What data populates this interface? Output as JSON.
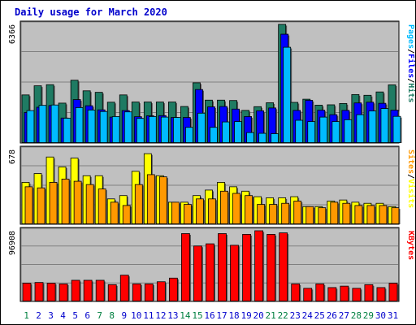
{
  "chart_data": {
    "type": "bar",
    "title": "Daily usage for March 2020",
    "categories": [
      "1",
      "2",
      "3",
      "4",
      "5",
      "6",
      "7",
      "8",
      "9",
      "10",
      "11",
      "12",
      "13",
      "14",
      "15",
      "16",
      "17",
      "18",
      "19",
      "20",
      "21",
      "22",
      "23",
      "24",
      "25",
      "26",
      "27",
      "28",
      "29",
      "30",
      "31"
    ],
    "weekend_days": [
      "1",
      "7",
      "8",
      "14",
      "15",
      "21",
      "22",
      "28",
      "29"
    ],
    "colors": {
      "hits": "#1f7b63",
      "files": "#0000ff",
      "pages": "#00bbff",
      "visits": "#ffff00",
      "sites": "#ff9900",
      "kbytes": "#ff0000",
      "panel_bg": "#c0c0c0",
      "title": "#0000cc",
      "weekend_label": "#008040",
      "weekday_label": "#0000cc"
    },
    "panels": [
      {
        "name": "hits-files-pages",
        "max_label": "6366",
        "ymax": 6366,
        "legend": [
          {
            "text": "Pages",
            "color": "#00bbff"
          },
          {
            "text": "/",
            "color": "#000000"
          },
          {
            "text": "Files",
            "color": "#0000ff"
          },
          {
            "text": "/",
            "color": "#000000"
          },
          {
            "text": "Hits",
            "color": "#1f7b63"
          }
        ],
        "series": [
          {
            "name": "Hits",
            "values": [
              2580,
              3070,
              3130,
              2140,
              3370,
              2800,
              2720,
              2190,
              2580,
              2200,
              2200,
              2200,
              2200,
              1960,
              3230,
              2300,
              2300,
              2280,
              1750,
              1950,
              2160,
              6366,
              2180,
              2350,
              2030,
              2050,
              2120,
              2600,
              2560,
              2740,
              3120
            ]
          },
          {
            "name": "Files",
            "values": [
              1640,
              1920,
              2010,
              1340,
              2330,
              2000,
              1780,
              1390,
              1740,
              1410,
              1460,
              1470,
              1370,
              1370,
              2870,
              1940,
              1960,
              1820,
              1420,
              1730,
              1880,
              5840,
              1750,
              2290,
              1760,
              1520,
              1750,
              2150,
              2190,
              2130,
              1760
            ]
          },
          {
            "name": "Pages",
            "values": [
              1740,
              2020,
              2040,
              1330,
              1900,
              1770,
              1690,
              1420,
              1670,
              1320,
              1420,
              1390,
              1370,
              840,
              1600,
              840,
              1130,
              1150,
              560,
              520,
              500,
              5140,
              1220,
              1150,
              1390,
              1150,
              1250,
              1520,
              1720,
              1850,
              1430
            ]
          }
        ]
      },
      {
        "name": "visits-sites",
        "max_label": "678",
        "ymax": 678,
        "legend": [
          {
            "text": "Sites",
            "color": "#ff9900"
          },
          {
            "text": "/",
            "color": "#000000"
          },
          {
            "text": "Visits",
            "color": "#ffff00"
          }
        ],
        "series": [
          {
            "name": "Visits",
            "values": [
              380,
              460,
              610,
              520,
              600,
              440,
              440,
              230,
              260,
              480,
              640,
              440,
              200,
              200,
              260,
              310,
              380,
              340,
              300,
              250,
              240,
              240,
              250,
              160,
              160,
              210,
              220,
              200,
              190,
              190,
              160
            ]
          },
          {
            "name": "Sites",
            "values": [
              340,
              330,
              380,
              410,
              390,
              360,
              320,
              200,
              170,
              360,
              450,
              430,
              200,
              180,
              230,
              230,
              300,
              280,
              260,
              180,
              180,
              190,
              210,
              160,
              150,
              200,
              190,
              170,
              170,
              170,
              150
            ]
          }
        ]
      },
      {
        "name": "kbytes",
        "max_label": "96908",
        "ymax": 96908,
        "legend": [
          {
            "text": "KBytes",
            "color": "#ff0000"
          }
        ],
        "series": [
          {
            "name": "KBytes",
            "values": [
              25000,
              26000,
              25000,
              24000,
              29000,
              29000,
              29000,
              23000,
              36000,
              24000,
              24000,
              27000,
              32000,
              93000,
              76000,
              79000,
              93000,
              77000,
              92000,
              96908,
              92000,
              94000,
              24000,
              18000,
              24000,
              19000,
              21000,
              18000,
              23000,
              19000,
              25000
            ]
          }
        ]
      }
    ]
  }
}
